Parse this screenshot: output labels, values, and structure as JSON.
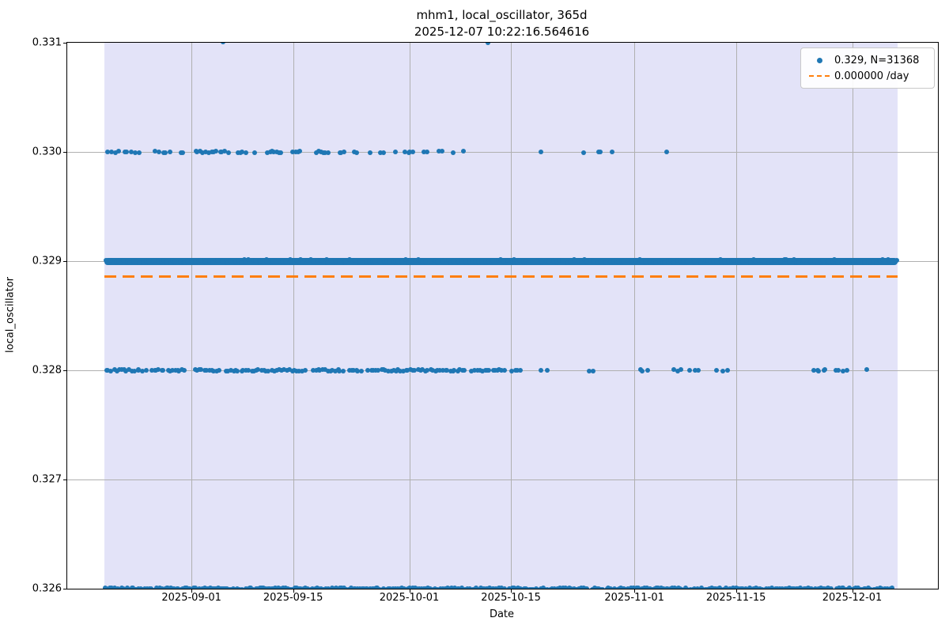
{
  "title": {
    "line1": "mhm1, local_oscillator, 365d",
    "line2": "2025-12-07 10:22:16.564616"
  },
  "colors": {
    "scatter": "#1f77b4",
    "trend": "#ff7f0e",
    "span_fill": "#e3e3f8",
    "grid": "#b0b0b0",
    "spine": "#000000"
  },
  "legend": {
    "items": [
      {
        "marker": "dot",
        "color": "#1f77b4",
        "label": "0.329, N=31368"
      },
      {
        "marker": "dashed-line",
        "color": "#ff7f0e",
        "label": "0.000000 /day"
      }
    ]
  },
  "chart_data": {
    "type": "scatter",
    "title": "mhm1, local_oscillator, 365d",
    "subtitle": "2025-12-07 10:22:16.564616",
    "xlabel": "Date",
    "ylabel": "local_oscillator",
    "ylim": [
      0.326,
      0.331
    ],
    "grid": true,
    "legend_position": "upper right",
    "y_ticks": [
      {
        "label": "0.331",
        "value": 0.331
      },
      {
        "label": "0.330",
        "value": 0.33
      },
      {
        "label": "0.329",
        "value": 0.329
      },
      {
        "label": "0.328",
        "value": 0.328
      },
      {
        "label": "0.327",
        "value": 0.327
      },
      {
        "label": "0.326",
        "value": 0.326
      }
    ],
    "x_ticks": [
      {
        "label": "2025-09-01",
        "day": 12
      },
      {
        "label": "2025-09-15",
        "day": 26
      },
      {
        "label": "2025-10-01",
        "day": 42
      },
      {
        "label": "2025-10-15",
        "day": 56
      },
      {
        "label": "2025-11-01",
        "day": 73
      },
      {
        "label": "2025-11-15",
        "day": 87
      },
      {
        "label": "2025-12-01",
        "day": 103
      }
    ],
    "x_day_zero_date": "2025-08-20",
    "xlim_days": [
      -5.1,
      114.9
    ],
    "data_span": {
      "start_day": 0,
      "end_day": 109.3,
      "start_date": "2025-08-20",
      "end_date": "2025-12-07"
    },
    "trend": {
      "slope_label": "0.000000 /day",
      "value": 0.3289,
      "style": "dashed"
    },
    "summary": {
      "mode_value": 0.329,
      "n_points": 31368
    },
    "bands": [
      {
        "value": 0.331,
        "style": "dots",
        "segments": [
          [
            16.3,
            16.5,
            1
          ],
          [
            52.6,
            52.9,
            1
          ]
        ]
      },
      {
        "value": 0.33,
        "style": "dots",
        "segments": [
          [
            0.1,
            5.2,
            9
          ],
          [
            6.9,
            9.3,
            5
          ],
          [
            10.5,
            10.8,
            2
          ],
          [
            12.3,
            17.2,
            13
          ],
          [
            18.2,
            19.6,
            4
          ],
          [
            20.6,
            20.7,
            1
          ],
          [
            22.3,
            24.4,
            7
          ],
          [
            25.7,
            27.3,
            4
          ],
          [
            28.9,
            31.0,
            6
          ],
          [
            32.3,
            33.1,
            3
          ],
          [
            34.3,
            35.1,
            2
          ],
          [
            36.5,
            36.6,
            1
          ],
          [
            37.8,
            38.6,
            2
          ],
          [
            39.9,
            40.1,
            1
          ],
          [
            41.3,
            42.7,
            4
          ],
          [
            43.9,
            44.7,
            2
          ],
          [
            46.0,
            46.9,
            2
          ],
          [
            48.0,
            48.2,
            1
          ],
          [
            49.3,
            49.5,
            1
          ],
          [
            60.1,
            60.3,
            1
          ],
          [
            65.9,
            66.1,
            1
          ],
          [
            68.0,
            68.3,
            2
          ],
          [
            69.8,
            70.0,
            1
          ],
          [
            77.3,
            77.5,
            1
          ]
        ]
      },
      {
        "value": 0.329,
        "style": "thick",
        "segments": [
          [
            0,
            109.3,
            260
          ]
        ]
      },
      {
        "value": 0.328,
        "style": "dots",
        "segments": [
          [
            0,
            5.8,
            16
          ],
          [
            6.3,
            11.3,
            14
          ],
          [
            12.2,
            16.0,
            11
          ],
          [
            16.5,
            27.8,
            32
          ],
          [
            28.6,
            33.0,
            13
          ],
          [
            33.5,
            35.5,
            6
          ],
          [
            36.2,
            49.8,
            40
          ],
          [
            50.5,
            55.3,
            14
          ],
          [
            56.0,
            57.5,
            4
          ],
          [
            60.0,
            61.0,
            2
          ],
          [
            66.5,
            67.5,
            2
          ],
          [
            73.5,
            75.0,
            3
          ],
          [
            78.0,
            79.5,
            3
          ],
          [
            80.5,
            82.0,
            3
          ],
          [
            84.0,
            86.0,
            3
          ],
          [
            97.5,
            99.5,
            5
          ],
          [
            100.5,
            102.5,
            4
          ],
          [
            104.7,
            105.0,
            1
          ]
        ]
      },
      {
        "value": 0.326,
        "style": "dense",
        "segments": [
          [
            0,
            108.8,
            400
          ]
        ]
      }
    ]
  }
}
